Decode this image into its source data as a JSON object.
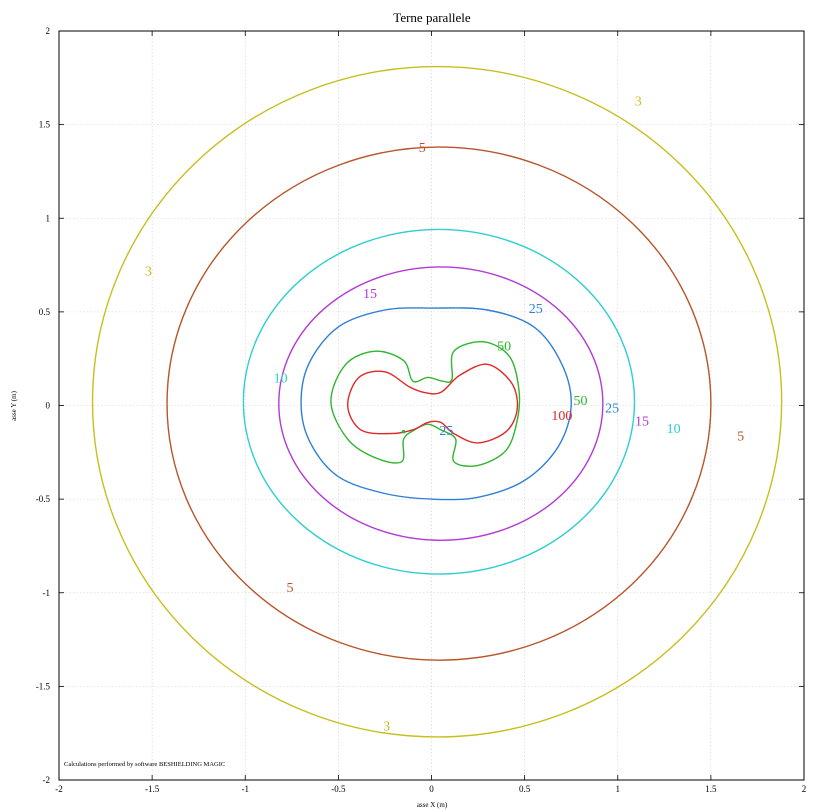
{
  "chart_data": {
    "type": "contour",
    "title": "Terne parallele",
    "xlabel": "asse X (m)",
    "ylabel": "asse Y (m)",
    "xlim": [
      -2,
      2
    ],
    "ylim": [
      -2,
      2
    ],
    "xticks": [
      -2,
      -1.5,
      -1,
      -0.5,
      0,
      0.5,
      1,
      1.5,
      2
    ],
    "yticks": [
      -2,
      -1.5,
      -1,
      -0.5,
      0,
      0.5,
      1,
      1.5,
      2
    ],
    "grid": true,
    "footnote": "Calculations performed by software BESHIELDING MAGIC",
    "levels": [
      {
        "value": 3,
        "color": "#c8be1e",
        "ellipse": {
          "cx": 0.03,
          "cy": 0.02,
          "rx": 1.85,
          "ry": 1.79
        }
      },
      {
        "value": 5,
        "color": "#b8552a",
        "ellipse": {
          "cx": 0.04,
          "cy": 0.01,
          "rx": 1.46,
          "ry": 1.37
        }
      },
      {
        "value": 10,
        "color": "#2ecfcf",
        "ellipse": {
          "cx": 0.04,
          "cy": 0.02,
          "rx": 1.05,
          "ry": 0.92
        }
      },
      {
        "value": 15,
        "color": "#b33ad6",
        "ellipse": {
          "cx": 0.05,
          "cy": 0.01,
          "rx": 0.87,
          "ry": 0.73
        }
      },
      {
        "value": 25,
        "color": "#2f7fd6",
        "points": [
          [
            0.0,
            0.52
          ],
          [
            0.3,
            0.51
          ],
          [
            0.55,
            0.42
          ],
          [
            0.7,
            0.22
          ],
          [
            0.75,
            0.0
          ],
          [
            0.68,
            -0.22
          ],
          [
            0.5,
            -0.4
          ],
          [
            0.25,
            -0.49
          ],
          [
            0.0,
            -0.5
          ],
          [
            -0.25,
            -0.47
          ],
          [
            -0.5,
            -0.38
          ],
          [
            -0.65,
            -0.2
          ],
          [
            -0.7,
            0.0
          ],
          [
            -0.66,
            0.22
          ],
          [
            -0.5,
            0.42
          ],
          [
            -0.25,
            0.51
          ]
        ]
      },
      {
        "value": 50,
        "color": "#2fb52f",
        "points": [
          [
            0.12,
            0.29
          ],
          [
            0.28,
            0.34
          ],
          [
            0.42,
            0.26
          ],
          [
            0.47,
            0.08
          ],
          [
            0.46,
            -0.08
          ],
          [
            0.4,
            -0.24
          ],
          [
            0.25,
            -0.32
          ],
          [
            0.12,
            -0.3
          ],
          [
            0.13,
            -0.18
          ],
          [
            0.05,
            -0.13
          ],
          [
            -0.02,
            -0.1
          ],
          [
            -0.09,
            -0.13
          ],
          [
            -0.15,
            -0.18
          ],
          [
            -0.16,
            -0.3
          ],
          [
            -0.3,
            -0.28
          ],
          [
            -0.45,
            -0.18
          ],
          [
            -0.54,
            0.02
          ],
          [
            -0.46,
            0.22
          ],
          [
            -0.3,
            0.29
          ],
          [
            -0.15,
            0.24
          ],
          [
            -0.1,
            0.13
          ],
          [
            -0.02,
            0.15
          ],
          [
            0.06,
            0.13
          ],
          [
            0.11,
            0.14
          ]
        ]
      },
      {
        "value": 100,
        "color": "#e02828",
        "points": [
          [
            0.05,
            0.07
          ],
          [
            0.15,
            0.16
          ],
          [
            0.3,
            0.22
          ],
          [
            0.43,
            0.12
          ],
          [
            0.46,
            -0.02
          ],
          [
            0.4,
            -0.14
          ],
          [
            0.25,
            -0.2
          ],
          [
            0.12,
            -0.15
          ],
          [
            0.05,
            -0.09
          ],
          [
            -0.02,
            -0.09
          ],
          [
            -0.1,
            -0.13
          ],
          [
            -0.22,
            -0.15
          ],
          [
            -0.38,
            -0.13
          ],
          [
            -0.45,
            0.0
          ],
          [
            -0.39,
            0.15
          ],
          [
            -0.25,
            0.18
          ],
          [
            -0.12,
            0.1
          ],
          [
            -0.04,
            0.07
          ]
        ]
      }
    ],
    "labels": [
      {
        "text": "3",
        "x": 1.11,
        "y": 1.63,
        "color": "#c8be1e"
      },
      {
        "text": "3",
        "x": -1.52,
        "y": 0.72,
        "color": "#c8be1e"
      },
      {
        "text": "3",
        "x": -0.24,
        "y": -1.71,
        "color": "#c8be1e"
      },
      {
        "text": "5",
        "x": -0.05,
        "y": 1.38,
        "color": "#b8552a"
      },
      {
        "text": "5",
        "x": 1.66,
        "y": -0.16,
        "color": "#b8552a"
      },
      {
        "text": "5",
        "x": -0.76,
        "y": -0.97,
        "color": "#b8552a"
      },
      {
        "text": "10",
        "x": -0.81,
        "y": 0.15,
        "color": "#2ecfcf"
      },
      {
        "text": "10",
        "x": 1.3,
        "y": -0.12,
        "color": "#2ecfcf"
      },
      {
        "text": "15",
        "x": -0.33,
        "y": 0.6,
        "color": "#b33ad6"
      },
      {
        "text": "15",
        "x": 1.13,
        "y": -0.08,
        "color": "#b33ad6"
      },
      {
        "text": "25",
        "x": 0.56,
        "y": 0.52,
        "color": "#2f7fd6"
      },
      {
        "text": "25",
        "x": 0.97,
        "y": -0.01,
        "color": "#2f7fd6"
      },
      {
        "text": "25",
        "x": 0.08,
        "y": -0.13,
        "color": "#2f7fd6"
      },
      {
        "text": "50",
        "x": 0.39,
        "y": 0.32,
        "color": "#2fb52f"
      },
      {
        "text": "50",
        "x": 0.8,
        "y": 0.03,
        "color": "#2fb52f"
      },
      {
        "text": "100",
        "x": 0.7,
        "y": -0.05,
        "color": "#e02828"
      }
    ],
    "markers": [
      {
        "x": -0.15,
        "y": -0.14,
        "color": "#2fb52f"
      }
    ]
  }
}
